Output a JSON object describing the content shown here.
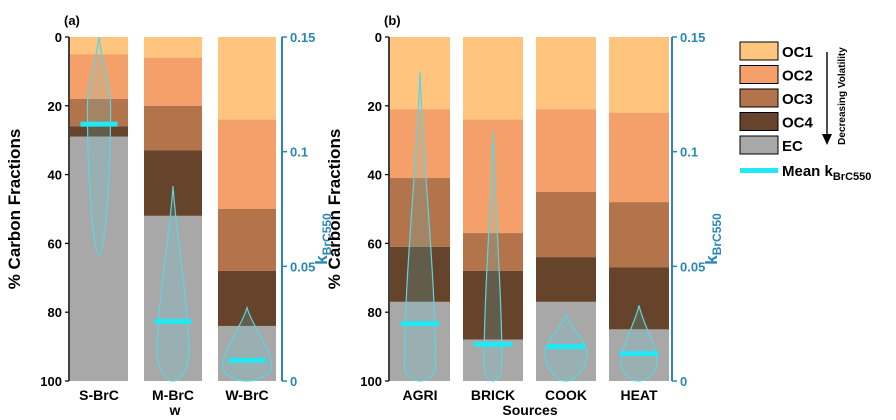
{
  "chart_data": [
    {
      "type": "bar",
      "panel_label": "(a)",
      "categories": [
        "S-BrC",
        "M-BrC",
        "W-BrC"
      ],
      "xlabel": "w",
      "ylabel": "% Carbon Fractions",
      "ylim": [
        0,
        100
      ],
      "y_inverted": true,
      "yticks": [
        0,
        20,
        40,
        60,
        80,
        100
      ],
      "y2label": "k",
      "y2label_sub": "BrC550",
      "y2lim": [
        0,
        0.15
      ],
      "y2ticks": [
        "0",
        "0.05",
        "0.1",
        "0.15"
      ],
      "series": [
        {
          "name": "OC1",
          "values": [
            5,
            6,
            24
          ]
        },
        {
          "name": "OC2",
          "values": [
            13,
            14,
            26
          ]
        },
        {
          "name": "OC3",
          "values": [
            8,
            13,
            18
          ]
        },
        {
          "name": "OC4",
          "values": [
            3,
            19,
            16
          ]
        },
        {
          "name": "EC",
          "values": [
            71,
            48,
            16
          ]
        }
      ],
      "kBrC550_mean": [
        0.112,
        0.026,
        0.009
      ]
    },
    {
      "type": "bar",
      "panel_label": "(b)",
      "categories": [
        "AGRI",
        "BRICK",
        "COOK",
        "HEAT"
      ],
      "xlabel": "Sources",
      "ylabel": "% Carbon Fractions",
      "ylim": [
        0,
        100
      ],
      "y_inverted": true,
      "yticks": [
        0,
        20,
        40,
        60,
        80,
        100
      ],
      "y2label": "k",
      "y2label_sub": "BrC550",
      "y2lim": [
        0,
        0.15
      ],
      "y2ticks": [
        "0",
        "0.05",
        "0.1",
        "0.15"
      ],
      "series": [
        {
          "name": "OC1",
          "values": [
            21,
            24,
            21,
            22
          ]
        },
        {
          "name": "OC2",
          "values": [
            20,
            33,
            24,
            26
          ]
        },
        {
          "name": "OC3",
          "values": [
            20,
            11,
            19,
            19
          ]
        },
        {
          "name": "OC4",
          "values": [
            16,
            20,
            13,
            18
          ]
        },
        {
          "name": "EC",
          "values": [
            23,
            12,
            23,
            15
          ]
        }
      ],
      "kBrC550_mean": [
        0.025,
        0.016,
        0.015,
        0.012
      ]
    }
  ],
  "legend": {
    "items": [
      {
        "name": "OC1",
        "color": "#ffc57e"
      },
      {
        "name": "OC2",
        "color": "#f5a06a"
      },
      {
        "name": "OC3",
        "color": "#b3734b"
      },
      {
        "name": "OC4",
        "color": "#66432b"
      },
      {
        "name": "EC",
        "color": "#a8a8a8"
      }
    ],
    "mean_label": "Mean k",
    "mean_label_sub": "BrC550",
    "mean_color": "#21e8f2",
    "note": "Decreasing Volatility"
  },
  "colors": {
    "violin": "#5fd4de",
    "right_axis": "#2a86b5",
    "gap": "#ffffff"
  }
}
